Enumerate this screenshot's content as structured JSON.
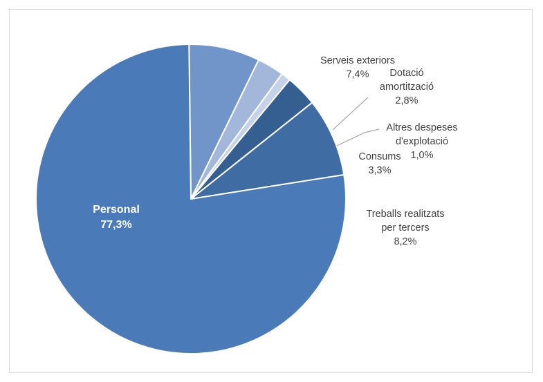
{
  "chart_data": {
    "type": "pie",
    "title": "",
    "start_angle_deg": 359.3,
    "direction": "clockwise",
    "slices": [
      {
        "label_lines": [
          "Serveis exteriors"
        ],
        "value_label": "7,4%",
        "value": 7.4,
        "color": "#7195c8"
      },
      {
        "label_lines": [
          "Dotació",
          "amortització"
        ],
        "value_label": "2,8%",
        "value": 2.8,
        "color": "#a2b7da"
      },
      {
        "label_lines": [
          "Altres despeses",
          "d'explotació"
        ],
        "value_label": "1,0%",
        "value": 1.0,
        "color": "#c5d2e8"
      },
      {
        "label_lines": [
          "Consums"
        ],
        "value_label": "3,3%",
        "value": 3.3,
        "color": "#355f91"
      },
      {
        "label_lines": [
          "Treballs realitzats",
          "per tercers"
        ],
        "value_label": "8,2%",
        "value": 8.2,
        "color": "#3f6ca2"
      },
      {
        "label_lines": [
          "Personal"
        ],
        "value_label": "77,3%",
        "value": 77.3,
        "color": "#4a7ab7"
      }
    ]
  }
}
